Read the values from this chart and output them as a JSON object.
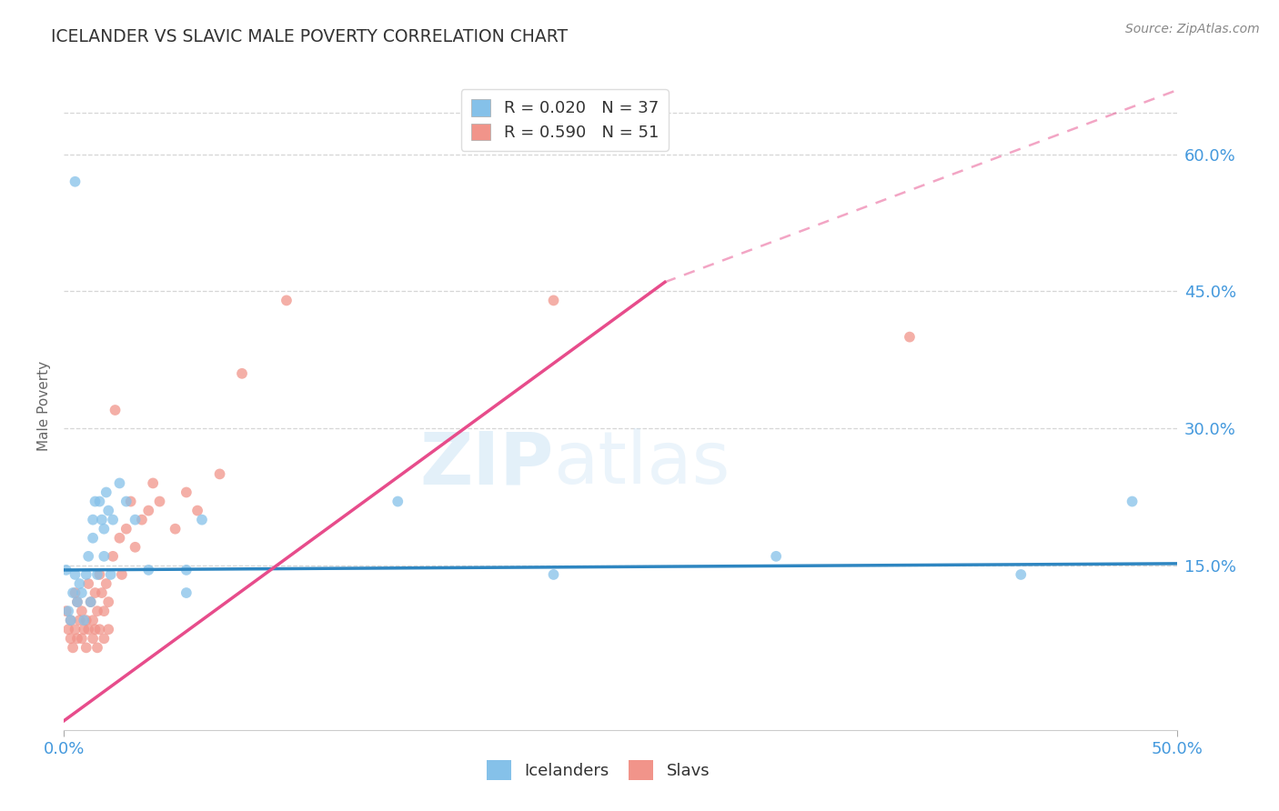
{
  "title": "ICELANDER VS SLAVIC MALE POVERTY CORRELATION CHART",
  "source": "Source: ZipAtlas.com",
  "ylabel": "Male Poverty",
  "xlim": [
    0.0,
    0.5
  ],
  "ylim": [
    -0.03,
    0.68
  ],
  "ytick_vals": [
    0.15,
    0.3,
    0.45,
    0.6
  ],
  "ytick_labels": [
    "15.0%",
    "30.0%",
    "45.0%",
    "60.0%"
  ],
  "xtick_vals": [
    0.0,
    0.5
  ],
  "xtick_labels": [
    "0.0%",
    "50.0%"
  ],
  "icelanders_R": 0.02,
  "icelanders_N": 37,
  "slavs_R": 0.59,
  "slavs_N": 51,
  "icelander_color": "#85C1E9",
  "slav_color": "#F1948A",
  "icelander_line_color": "#2E86C1",
  "slav_line_color": "#E74C8B",
  "background_color": "#ffffff",
  "grid_color": "#cccccc",
  "title_color": "#333333",
  "axis_color": "#4499DD",
  "legend_r_color": "#4499DD",
  "legend_n_color": "#4499DD",
  "legend_label_icelanders": "Icelanders",
  "legend_label_slavs": "Slavs",
  "icelander_trendline": [
    0.0,
    0.5,
    0.145,
    0.152
  ],
  "slav_trendline_solid": [
    0.0,
    0.27,
    -0.02,
    0.46
  ],
  "slav_trendline_dash": [
    0.27,
    0.5,
    0.46,
    0.67
  ],
  "icelanders_x": [
    0.001,
    0.002,
    0.003,
    0.004,
    0.005,
    0.005,
    0.006,
    0.007,
    0.008,
    0.009,
    0.01,
    0.011,
    0.012,
    0.013,
    0.013,
    0.014,
    0.015,
    0.016,
    0.017,
    0.018,
    0.019,
    0.02,
    0.021,
    0.022,
    0.025,
    0.028,
    0.032,
    0.038,
    0.055,
    0.062,
    0.15,
    0.22,
    0.32,
    0.43,
    0.48,
    0.055,
    0.018
  ],
  "icelanders_y": [
    0.145,
    0.1,
    0.09,
    0.12,
    0.57,
    0.14,
    0.11,
    0.13,
    0.12,
    0.09,
    0.14,
    0.16,
    0.11,
    0.2,
    0.18,
    0.22,
    0.14,
    0.22,
    0.2,
    0.19,
    0.23,
    0.21,
    0.14,
    0.2,
    0.24,
    0.22,
    0.2,
    0.145,
    0.145,
    0.2,
    0.22,
    0.14,
    0.16,
    0.14,
    0.22,
    0.12,
    0.16
  ],
  "slavs_x": [
    0.001,
    0.002,
    0.003,
    0.003,
    0.004,
    0.005,
    0.005,
    0.006,
    0.006,
    0.007,
    0.008,
    0.008,
    0.009,
    0.01,
    0.01,
    0.011,
    0.011,
    0.012,
    0.013,
    0.013,
    0.014,
    0.014,
    0.015,
    0.015,
    0.016,
    0.016,
    0.017,
    0.018,
    0.018,
    0.019,
    0.02,
    0.02,
    0.022,
    0.023,
    0.025,
    0.026,
    0.028,
    0.03,
    0.032,
    0.035,
    0.038,
    0.04,
    0.043,
    0.05,
    0.055,
    0.06,
    0.07,
    0.08,
    0.1,
    0.22,
    0.38
  ],
  "slavs_y": [
    0.1,
    0.08,
    0.07,
    0.09,
    0.06,
    0.12,
    0.08,
    0.07,
    0.11,
    0.09,
    0.07,
    0.1,
    0.08,
    0.09,
    0.06,
    0.13,
    0.08,
    0.11,
    0.09,
    0.07,
    0.12,
    0.08,
    0.1,
    0.06,
    0.14,
    0.08,
    0.12,
    0.1,
    0.07,
    0.13,
    0.11,
    0.08,
    0.16,
    0.32,
    0.18,
    0.14,
    0.19,
    0.22,
    0.17,
    0.2,
    0.21,
    0.24,
    0.22,
    0.19,
    0.23,
    0.21,
    0.25,
    0.36,
    0.44,
    0.44,
    0.4
  ],
  "watermark_zip": "ZIP",
  "watermark_atlas": "atlas",
  "marker_size": 72
}
